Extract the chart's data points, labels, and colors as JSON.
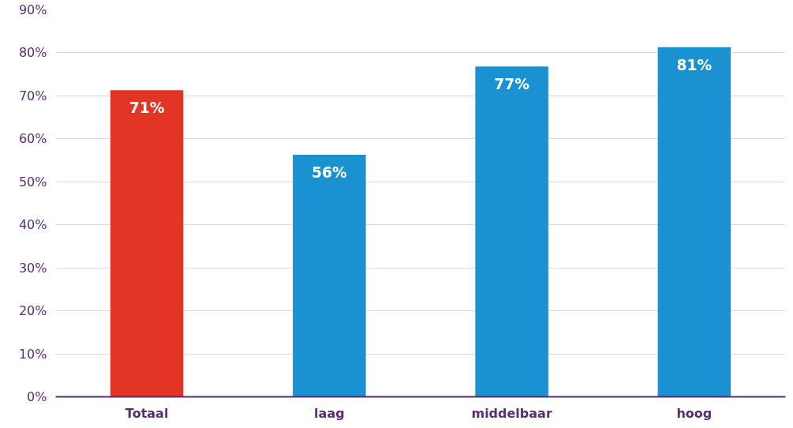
{
  "chart_data": {
    "type": "bar",
    "categories": [
      "Totaal",
      "laag",
      "middelbaar",
      "hoog"
    ],
    "values": [
      71.3,
      56.3,
      76.8,
      81.3
    ],
    "colors": [
      "#e23525",
      "#1a91d1",
      "#1a91d1",
      "#1a91d1"
    ],
    "value_labels": [
      "71%",
      "56%",
      "77%",
      "81%"
    ],
    "ylim": [
      0,
      90
    ],
    "yticks": [
      {
        "value": 0,
        "label": "0%"
      },
      {
        "value": 10,
        "label": "10%"
      },
      {
        "value": 20,
        "label": "20%"
      },
      {
        "value": 30,
        "label": "30%"
      },
      {
        "value": 40,
        "label": "40%"
      },
      {
        "value": 50,
        "label": "50%"
      },
      {
        "value": 60,
        "label": "60%"
      },
      {
        "value": 70,
        "label": "70%"
      },
      {
        "value": 80,
        "label": "80%"
      },
      {
        "value": 90,
        "label": "90%"
      }
    ],
    "grid": "y"
  }
}
